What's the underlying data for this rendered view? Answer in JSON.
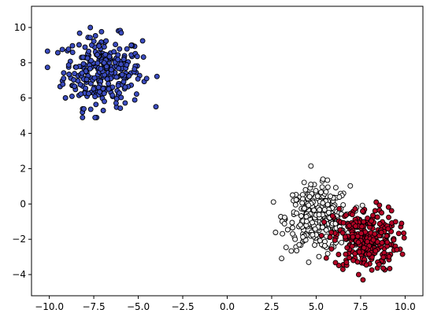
{
  "chart_data": {
    "type": "scatter",
    "title": "",
    "xlabel": "",
    "ylabel": "",
    "xlim": [
      -11,
      11
    ],
    "ylim": [
      -5.2,
      11.2
    ],
    "grid": false,
    "x_ticks": [
      -10.0,
      -7.5,
      -5.0,
      -2.5,
      0.0,
      2.5,
      5.0,
      7.5,
      10.0
    ],
    "x_tick_labels": [
      "−10.0",
      "−7.5",
      "−5.0",
      "−2.5",
      "0.0",
      "2.5",
      "5.0",
      "7.5",
      "10.0"
    ],
    "y_ticks": [
      -4,
      -2,
      0,
      2,
      4,
      6,
      8,
      10
    ],
    "y_tick_labels": [
      "−4",
      "−2",
      "0",
      "2",
      "4",
      "6",
      "8",
      "10"
    ],
    "marker_edge_color": "#000000",
    "series": [
      {
        "color": "#3b4cc0",
        "center": [
          -7.0,
          7.5
        ],
        "spread": [
          1.1,
          1.0
        ],
        "n_points": 300,
        "x_range": [
          -10.1,
          -3.5
        ],
        "y_range": [
          4.9,
          10.5
        ]
      },
      {
        "color": "#f2f2f2",
        "center": [
          5.1,
          -0.8
        ],
        "spread": [
          0.9,
          0.9
        ],
        "n_points": 300,
        "x_range": [
          2.6,
          7.6
        ],
        "y_range": [
          -3.3,
          2.2
        ]
      },
      {
        "color": "#b40426",
        "center": [
          7.8,
          -2.0
        ],
        "spread": [
          0.9,
          0.9
        ],
        "n_points": 300,
        "x_range": [
          5.3,
          10.2
        ],
        "y_range": [
          -4.3,
          1.2
        ]
      }
    ]
  }
}
